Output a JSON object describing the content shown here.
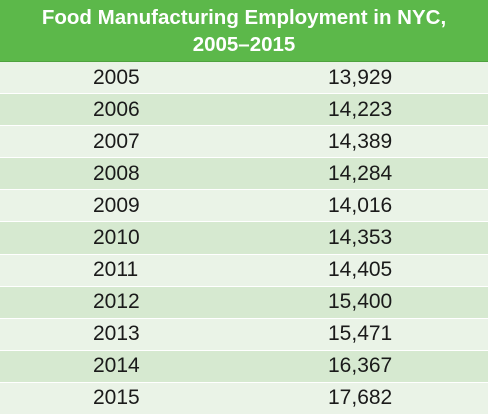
{
  "chart_data": {
    "type": "table",
    "title_line1": "Food Manufacturing Employment in NYC,",
    "title_line2": "2005–2015",
    "rows": [
      {
        "year": "2005",
        "value": "13,929"
      },
      {
        "year": "2006",
        "value": "14,223"
      },
      {
        "year": "2007",
        "value": "14,389"
      },
      {
        "year": "2008",
        "value": "14,284"
      },
      {
        "year": "2009",
        "value": "14,016"
      },
      {
        "year": "2010",
        "value": "14,353"
      },
      {
        "year": "2011",
        "value": "14,405"
      },
      {
        "year": "2012",
        "value": "15,400"
      },
      {
        "year": "2013",
        "value": "15,471"
      },
      {
        "year": "2014",
        "value": "16,367"
      },
      {
        "year": "2015",
        "value": "17,682"
      }
    ],
    "colors": {
      "header_bg": "#5cb84a",
      "row_light": "#eaf3e7",
      "row_dark": "#d6e9d0"
    }
  }
}
